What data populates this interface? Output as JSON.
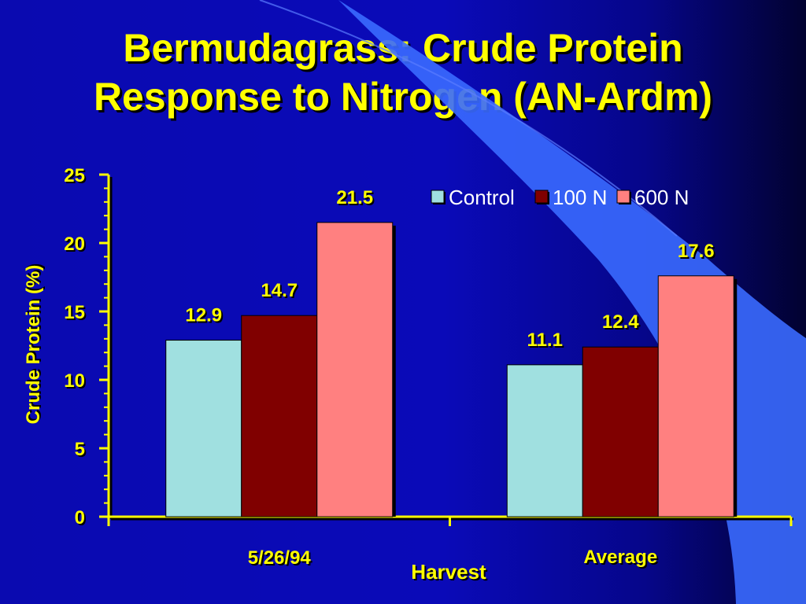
{
  "slide": {
    "title_line1": "Bermudagrass: Crude Protein",
    "title_line2": "Response to Nitrogen (AN-Ardm)"
  },
  "colors": {
    "title": "#ffff00",
    "axis": "#ffff00",
    "control": "#a0e0e0",
    "n100": "#800000",
    "n600": "#ff8080"
  },
  "chart_data": {
    "type": "bar",
    "categories": [
      "5/26/94",
      "Average"
    ],
    "series": [
      {
        "name": "Control",
        "values": [
          12.9,
          11.1
        ],
        "color": "#a0e0e0"
      },
      {
        "name": "100 N",
        "values": [
          14.7,
          12.4
        ],
        "color": "#800000"
      },
      {
        "name": "600 N",
        "values": [
          21.5,
          17.6
        ],
        "color": "#ff8080"
      }
    ],
    "xlabel": "Harvest",
    "ylabel": "Crude Protein (%)",
    "ylim": [
      0,
      25
    ],
    "yticks": [
      0,
      5,
      10,
      15,
      20,
      25
    ],
    "data_labels": true,
    "grid": false,
    "legend": "top-right"
  }
}
